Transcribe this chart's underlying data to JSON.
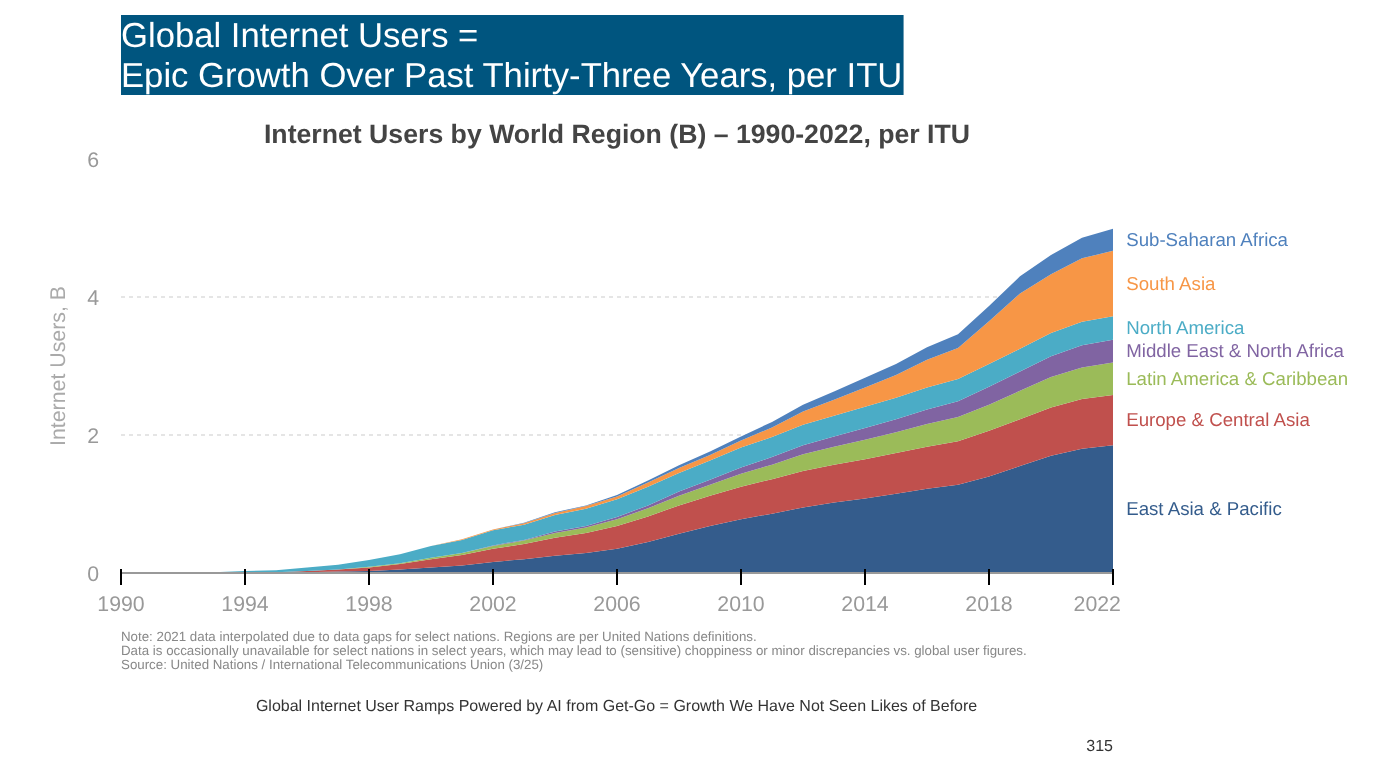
{
  "chart_data": {
    "type": "area",
    "stacked": true,
    "title": "Global Internet Users =\nEpic Growth Over Past Thirty-Three Years, per ITU",
    "subtitle": "Internet Users by World Region (B) – 1990-2022, per ITU",
    "ylabel": "Internet Users, B",
    "x": [
      1990,
      1991,
      1992,
      1993,
      1994,
      1995,
      1996,
      1997,
      1998,
      1999,
      2000,
      2001,
      2002,
      2003,
      2004,
      2005,
      2006,
      2007,
      2008,
      2009,
      2010,
      2011,
      2012,
      2013,
      2014,
      2015,
      2016,
      2017,
      2018,
      2019,
      2020,
      2021,
      2022
    ],
    "xlim": [
      1990,
      2022
    ],
    "xticks": [
      1990,
      1994,
      1998,
      2002,
      2006,
      2010,
      2014,
      2018,
      2022
    ],
    "ylim": [
      0,
      6
    ],
    "yticks": [
      0,
      2,
      4,
      6
    ],
    "grid": "y",
    "legend": false,
    "series": [
      {
        "name": "East Asia & Pacific",
        "color": "#345c8c",
        "values": [
          0,
          0,
          0,
          0,
          0,
          0,
          0.01,
          0.02,
          0.03,
          0.05,
          0.08,
          0.11,
          0.16,
          0.2,
          0.25,
          0.29,
          0.35,
          0.45,
          0.57,
          0.68,
          0.78,
          0.86,
          0.95,
          1.02,
          1.08,
          1.15,
          1.22,
          1.28,
          1.4,
          1.55,
          1.7,
          1.8,
          1.85
        ]
      },
      {
        "name": "Europe & Central Asia",
        "color": "#c0504d",
        "values": [
          0,
          0,
          0,
          0,
          0.01,
          0.01,
          0.02,
          0.03,
          0.05,
          0.08,
          0.12,
          0.15,
          0.19,
          0.22,
          0.26,
          0.29,
          0.33,
          0.37,
          0.41,
          0.44,
          0.47,
          0.5,
          0.53,
          0.55,
          0.57,
          0.59,
          0.61,
          0.63,
          0.66,
          0.68,
          0.7,
          0.72,
          0.73
        ]
      },
      {
        "name": "Latin America & Caribbean",
        "color": "#9bbb59",
        "values": [
          0,
          0,
          0,
          0,
          0,
          0,
          0,
          0,
          0.01,
          0.01,
          0.02,
          0.03,
          0.04,
          0.05,
          0.07,
          0.08,
          0.1,
          0.12,
          0.14,
          0.16,
          0.19,
          0.21,
          0.24,
          0.26,
          0.28,
          0.3,
          0.33,
          0.35,
          0.38,
          0.41,
          0.44,
          0.46,
          0.47
        ]
      },
      {
        "name": "Middle East & North Africa",
        "color": "#8064a2",
        "values": [
          0,
          0,
          0,
          0,
          0,
          0,
          0,
          0,
          0,
          0,
          0,
          0,
          0.01,
          0.01,
          0.02,
          0.02,
          0.03,
          0.04,
          0.06,
          0.07,
          0.09,
          0.11,
          0.13,
          0.15,
          0.17,
          0.19,
          0.21,
          0.23,
          0.26,
          0.28,
          0.3,
          0.32,
          0.33
        ]
      },
      {
        "name": "North America",
        "color": "#4bacc6",
        "values": [
          0,
          0,
          0.01,
          0.01,
          0.02,
          0.03,
          0.05,
          0.07,
          0.1,
          0.13,
          0.17,
          0.19,
          0.22,
          0.22,
          0.24,
          0.25,
          0.26,
          0.27,
          0.27,
          0.28,
          0.29,
          0.29,
          0.3,
          0.3,
          0.31,
          0.31,
          0.32,
          0.32,
          0.33,
          0.33,
          0.34,
          0.34,
          0.34
        ]
      },
      {
        "name": "South Asia",
        "color": "#f79646",
        "values": [
          0,
          0,
          0,
          0,
          0,
          0,
          0,
          0,
          0,
          0,
          0,
          0.01,
          0.01,
          0.02,
          0.03,
          0.04,
          0.04,
          0.06,
          0.07,
          0.08,
          0.1,
          0.14,
          0.19,
          0.23,
          0.28,
          0.33,
          0.4,
          0.45,
          0.62,
          0.8,
          0.85,
          0.92,
          0.95
        ]
      },
      {
        "name": "Sub-Saharan Africa",
        "color": "#4f81bd",
        "values": [
          0,
          0,
          0,
          0,
          0,
          0,
          0,
          0,
          0,
          0,
          0,
          0,
          0,
          0.01,
          0.01,
          0.01,
          0.02,
          0.03,
          0.04,
          0.05,
          0.06,
          0.08,
          0.1,
          0.12,
          0.14,
          0.16,
          0.18,
          0.2,
          0.22,
          0.25,
          0.28,
          0.3,
          0.32
        ]
      }
    ],
    "annotations": [
      "Note: 2021 data interpolated due to data gaps for select nations. Regions are per United Nations definitions.\nData is occasionally unavailable for select nations in select years, which may lead to (sensitive) choppiness or minor discrepancies vs. global user figures.\nSource: United Nations / International Telecommunications Union (3/25)",
      "Global Internet User Ramps Powered by AI from Get-Go = Growth We Have Not Seen Likes of Before",
      "315"
    ]
  }
}
